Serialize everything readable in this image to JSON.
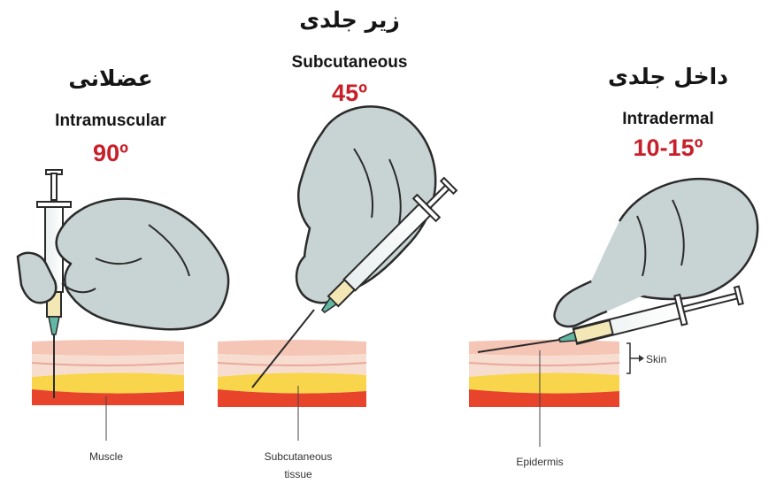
{
  "panels": [
    {
      "title_fa": "عضلانی",
      "title_en": "Intramuscular",
      "angle": "90º",
      "label": "Muscle"
    },
    {
      "title_fa": "زیر جلدی",
      "title_en": "Subcutaneous",
      "angle": "45º",
      "label_line1": "Subcutaneous",
      "label_line2": "tissue"
    },
    {
      "title_fa": "داخل جلدی",
      "title_en": "Intradermal",
      "angle": "10-15º",
      "label": "Epidermis",
      "skin_label": "Skin"
    }
  ],
  "colors": {
    "glove": "#c8d3d3",
    "glove_outline": "#2b2b2b",
    "epidermis": "#f5c6b6",
    "dermis": "#f7ddd0",
    "fat": "#f8d54a",
    "muscle": "#e8442c",
    "angle_red": "#c8202a"
  }
}
